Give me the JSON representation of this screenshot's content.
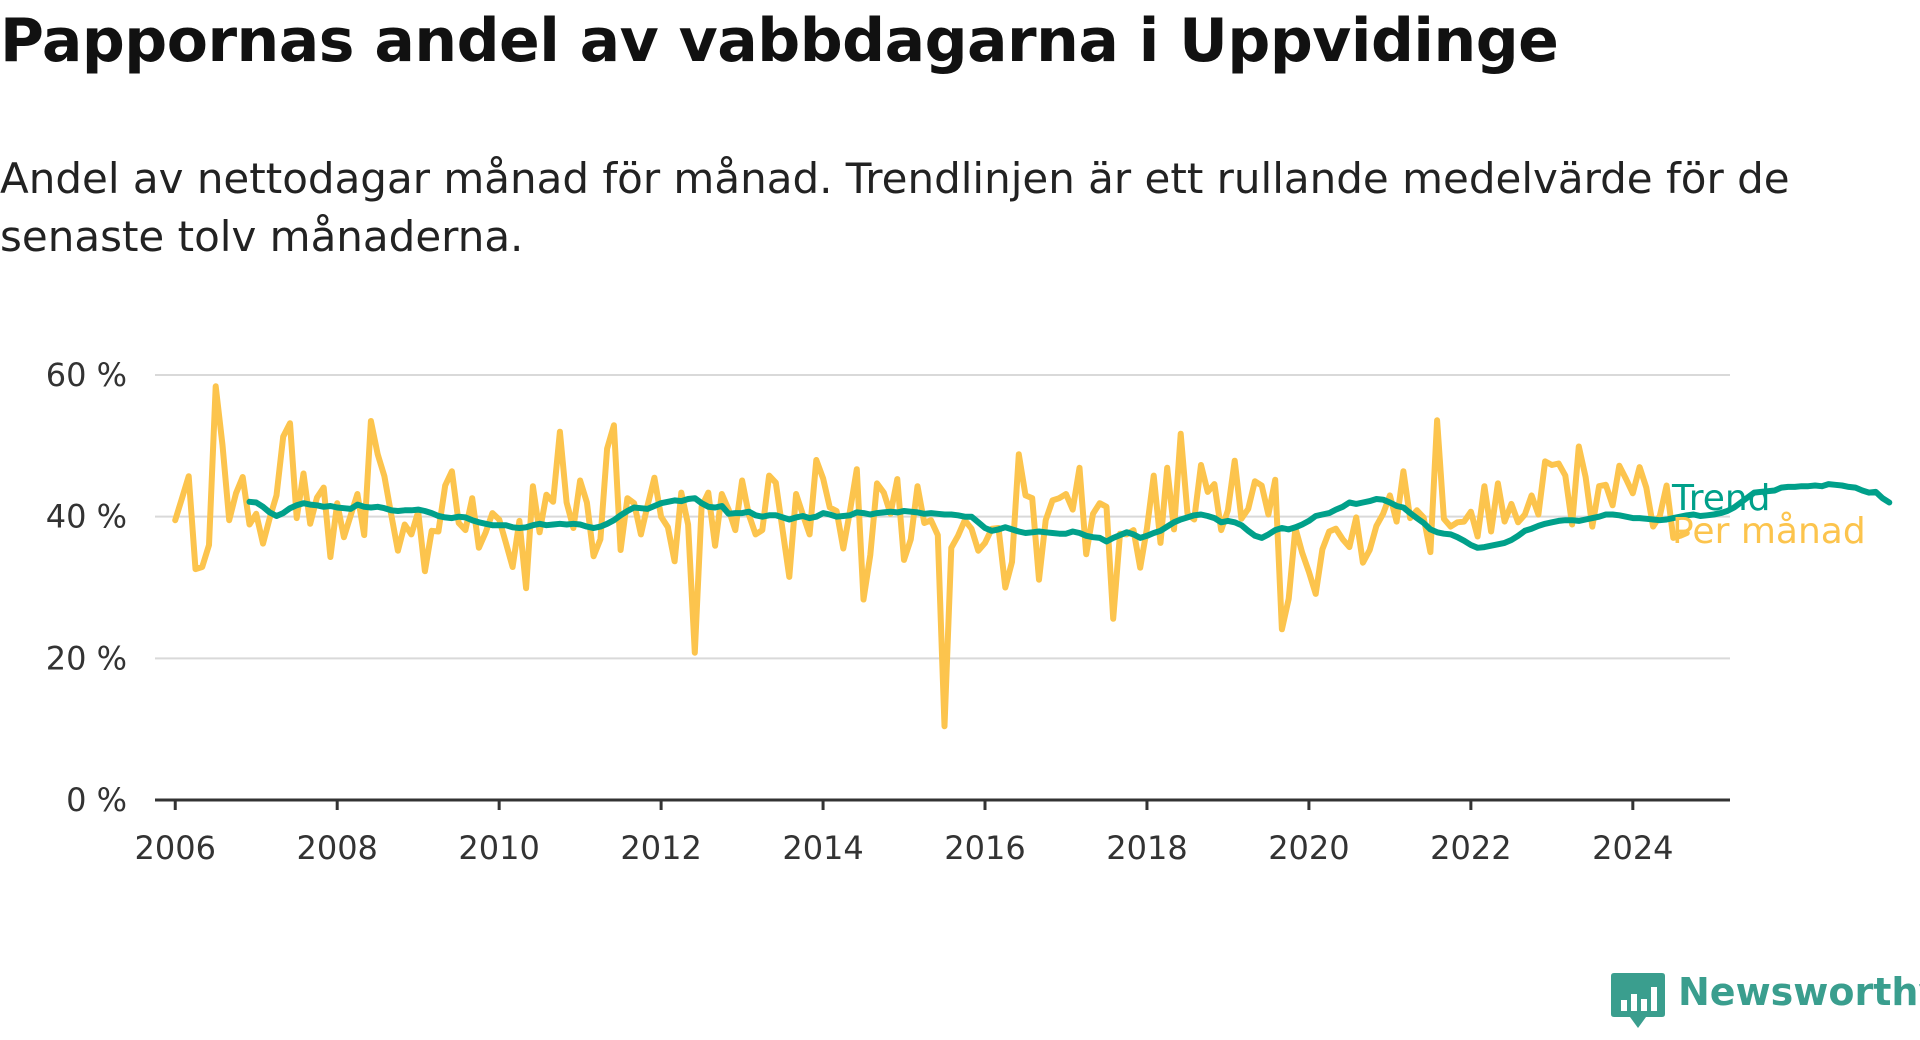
{
  "title": "Pappornas andel av vabbdagarna i Uppvidinge",
  "subtitle": "Andel av nettodagar månad för månad. Trendlinjen är ett rullande medelvärde för de senaste tolv månaderna.",
  "brand": {
    "name": "Newsworthy",
    "icon": "newsworthy-logo-icon",
    "color": "#3a9e8e"
  },
  "chart_data": {
    "type": "line",
    "title": "Pappornas andel av vabbdagarna i Uppvidinge",
    "subtitle": "Andel av nettodagar månad för månad. Trendlinjen är ett rullande medelvärde för de senaste tolv månaderna.",
    "xlabel": "",
    "ylabel": "",
    "xlim": [
      2005.75,
      2025.2
    ],
    "ylim": [
      0,
      60
    ],
    "x_ticks": [
      2006,
      2008,
      2010,
      2012,
      2014,
      2016,
      2018,
      2020,
      2022,
      2024
    ],
    "y_ticks": [
      0,
      20,
      40,
      60
    ],
    "y_tick_labels": [
      "0 %",
      "20 %",
      "40 %",
      "60 %"
    ],
    "grid": "horizontal",
    "legend": "direct labels at line ends (right)",
    "series": [
      {
        "name": "Trend",
        "color": "#00a08a",
        "stroke_width": 6,
        "x_start": 2006.917,
        "step_months": 1,
        "values": [
          42.1,
          42.0,
          41.4,
          40.6,
          40.1,
          40.5,
          41.2,
          41.6,
          41.9,
          41.7,
          41.6,
          41.4,
          41.5,
          41.3,
          41.2,
          41.1,
          41.7,
          41.4,
          41.3,
          41.4,
          41.2,
          40.9,
          40.8,
          40.9,
          40.9,
          41.0,
          40.8,
          40.5,
          40.1,
          39.9,
          39.8,
          40.0,
          39.9,
          39.5,
          39.2,
          39.0,
          38.8,
          38.8,
          38.8,
          38.5,
          38.4,
          38.5,
          38.8,
          39.0,
          38.8,
          38.9,
          39.0,
          38.9,
          39.0,
          38.9,
          38.6,
          38.4,
          38.6,
          39.0,
          39.5,
          40.2,
          40.8,
          41.3,
          41.2,
          41.1,
          41.5,
          41.9,
          42.1,
          42.3,
          42.2,
          42.5,
          42.6,
          41.9,
          41.4,
          41.3,
          41.5,
          40.4,
          40.5,
          40.5,
          40.7,
          40.2,
          40.0,
          40.2,
          40.2,
          39.9,
          39.6,
          39.9,
          40.1,
          39.8,
          40.0,
          40.5,
          40.3,
          40.0,
          40.1,
          40.2,
          40.6,
          40.5,
          40.3,
          40.5,
          40.6,
          40.7,
          40.6,
          40.8,
          40.7,
          40.6,
          40.4,
          40.5,
          40.4,
          40.3,
          40.3,
          40.2,
          40.0,
          40.0,
          39.2,
          38.4,
          38.0,
          38.2,
          38.5,
          38.2,
          37.9,
          37.7,
          37.8,
          37.9,
          37.8,
          37.7,
          37.6,
          37.6,
          37.9,
          37.7,
          37.3,
          37.1,
          37.0,
          36.5,
          37.0,
          37.4,
          37.8,
          37.5,
          37.0,
          37.3,
          37.7,
          38.0,
          38.6,
          39.2,
          39.6,
          39.9,
          40.2,
          40.3,
          40.1,
          39.8,
          39.2,
          39.4,
          39.2,
          38.8,
          38.0,
          37.3,
          37.0,
          37.5,
          38.1,
          38.4,
          38.2,
          38.5,
          38.9,
          39.4,
          40.1,
          40.3,
          40.5,
          41.0,
          41.4,
          42.0,
          41.8,
          42.0,
          42.2,
          42.5,
          42.4,
          42.0,
          41.5,
          41.3,
          40.5,
          39.8,
          39.1,
          38.2,
          37.8,
          37.6,
          37.5,
          37.1,
          36.6,
          36.0,
          35.6,
          35.7,
          35.9,
          36.1,
          36.3,
          36.7,
          37.3,
          38.0,
          38.3,
          38.7,
          39.0,
          39.2,
          39.4,
          39.5,
          39.5,
          39.4,
          39.6,
          39.8,
          40.0,
          40.3,
          40.3,
          40.2,
          40.0,
          39.8,
          39.8,
          39.7,
          39.6,
          39.5,
          39.6,
          39.8,
          40.0,
          40.2,
          40.3,
          40.1,
          40.2,
          40.3,
          40.5,
          40.8,
          41.3,
          42.0,
          42.7,
          43.4,
          43.5,
          43.6,
          43.7,
          44.1,
          44.2,
          44.2,
          44.3,
          44.3,
          44.4,
          44.3,
          44.6,
          44.5,
          44.4,
          44.2,
          44.1,
          43.7,
          43.4,
          43.5,
          42.6,
          42.0
        ]
      },
      {
        "name": "Per månad",
        "color": "#fcc44d",
        "stroke_width": 6,
        "x_start": 2006.0,
        "step_months": 1,
        "values": [
          39.5,
          42.6,
          45.7,
          32.6,
          32.9,
          36.0,
          58.4,
          50.1,
          39.5,
          43.3,
          45.6,
          38.9,
          40.4,
          36.2,
          39.8,
          43.0,
          51.3,
          53.2,
          39.8,
          46.1,
          39.0,
          42.7,
          44.1,
          34.3,
          41.9,
          37.1,
          40.2,
          43.2,
          37.4,
          53.5,
          48.8,
          45.7,
          40.3,
          35.2,
          38.9,
          37.5,
          40.7,
          32.3,
          38.0,
          37.9,
          44.4,
          46.4,
          39.1,
          38.1,
          42.6,
          35.6,
          37.8,
          40.5,
          39.6,
          36.3,
          32.9,
          39.4,
          29.9,
          44.3,
          37.8,
          43.1,
          42.1,
          52.0,
          42.0,
          38.4,
          45.1,
          42.0,
          34.4,
          36.8,
          49.6,
          52.9,
          35.3,
          42.6,
          41.9,
          37.5,
          41.6,
          45.5,
          40.0,
          38.5,
          33.7,
          43.4,
          38.9,
          20.8,
          41.4,
          43.4,
          35.9,
          43.2,
          41.0,
          38.1,
          45.1,
          40.3,
          37.5,
          38.1,
          45.8,
          44.8,
          38.1,
          31.5,
          43.2,
          40.3,
          37.5,
          48.0,
          45.4,
          41.3,
          40.8,
          35.5,
          40.9,
          46.7,
          28.3,
          34.6,
          44.7,
          43.4,
          40.4,
          45.3,
          33.9,
          36.8,
          44.3,
          39.1,
          39.5,
          37.4,
          10.4,
          35.6,
          37.3,
          39.5,
          38.3,
          35.2,
          36.3,
          38.3,
          38.4,
          30.0,
          33.6,
          48.8,
          43.0,
          42.6,
          31.1,
          39.5,
          42.3,
          42.6,
          43.2,
          41.0,
          46.9,
          34.7,
          40.4,
          41.9,
          41.4,
          25.6,
          37.6,
          37.5,
          38.1,
          32.8,
          38.4,
          45.8,
          36.3,
          46.9,
          38.2,
          51.7,
          40.4,
          39.6,
          47.3,
          43.5,
          44.6,
          38.1,
          40.9,
          47.9,
          39.7,
          41.1,
          45.0,
          44.4,
          40.3,
          45.2,
          24.1,
          28.4,
          38.4,
          34.9,
          32.2,
          29.1,
          35.4,
          37.9,
          38.3,
          36.8,
          35.7,
          39.9,
          33.5,
          35.3,
          38.7,
          40.4,
          43.0,
          39.3,
          46.4,
          39.8,
          40.9,
          39.9,
          35.0,
          53.6,
          39.7,
          38.6,
          39.2,
          39.3,
          40.7,
          37.2,
          44.3,
          37.9,
          44.7,
          39.3,
          41.8,
          39.2,
          40.3,
          43.0,
          40.3,
          47.8,
          47.3,
          47.5,
          45.8,
          38.9,
          49.9,
          45.6,
          38.6,
          44.3,
          44.5,
          41.6,
          47.2,
          45.3,
          43.3,
          47.0,
          44.1,
          38.6,
          40.1,
          44.4,
          37.0,
          37.3,
          37.7
        ]
      }
    ]
  }
}
